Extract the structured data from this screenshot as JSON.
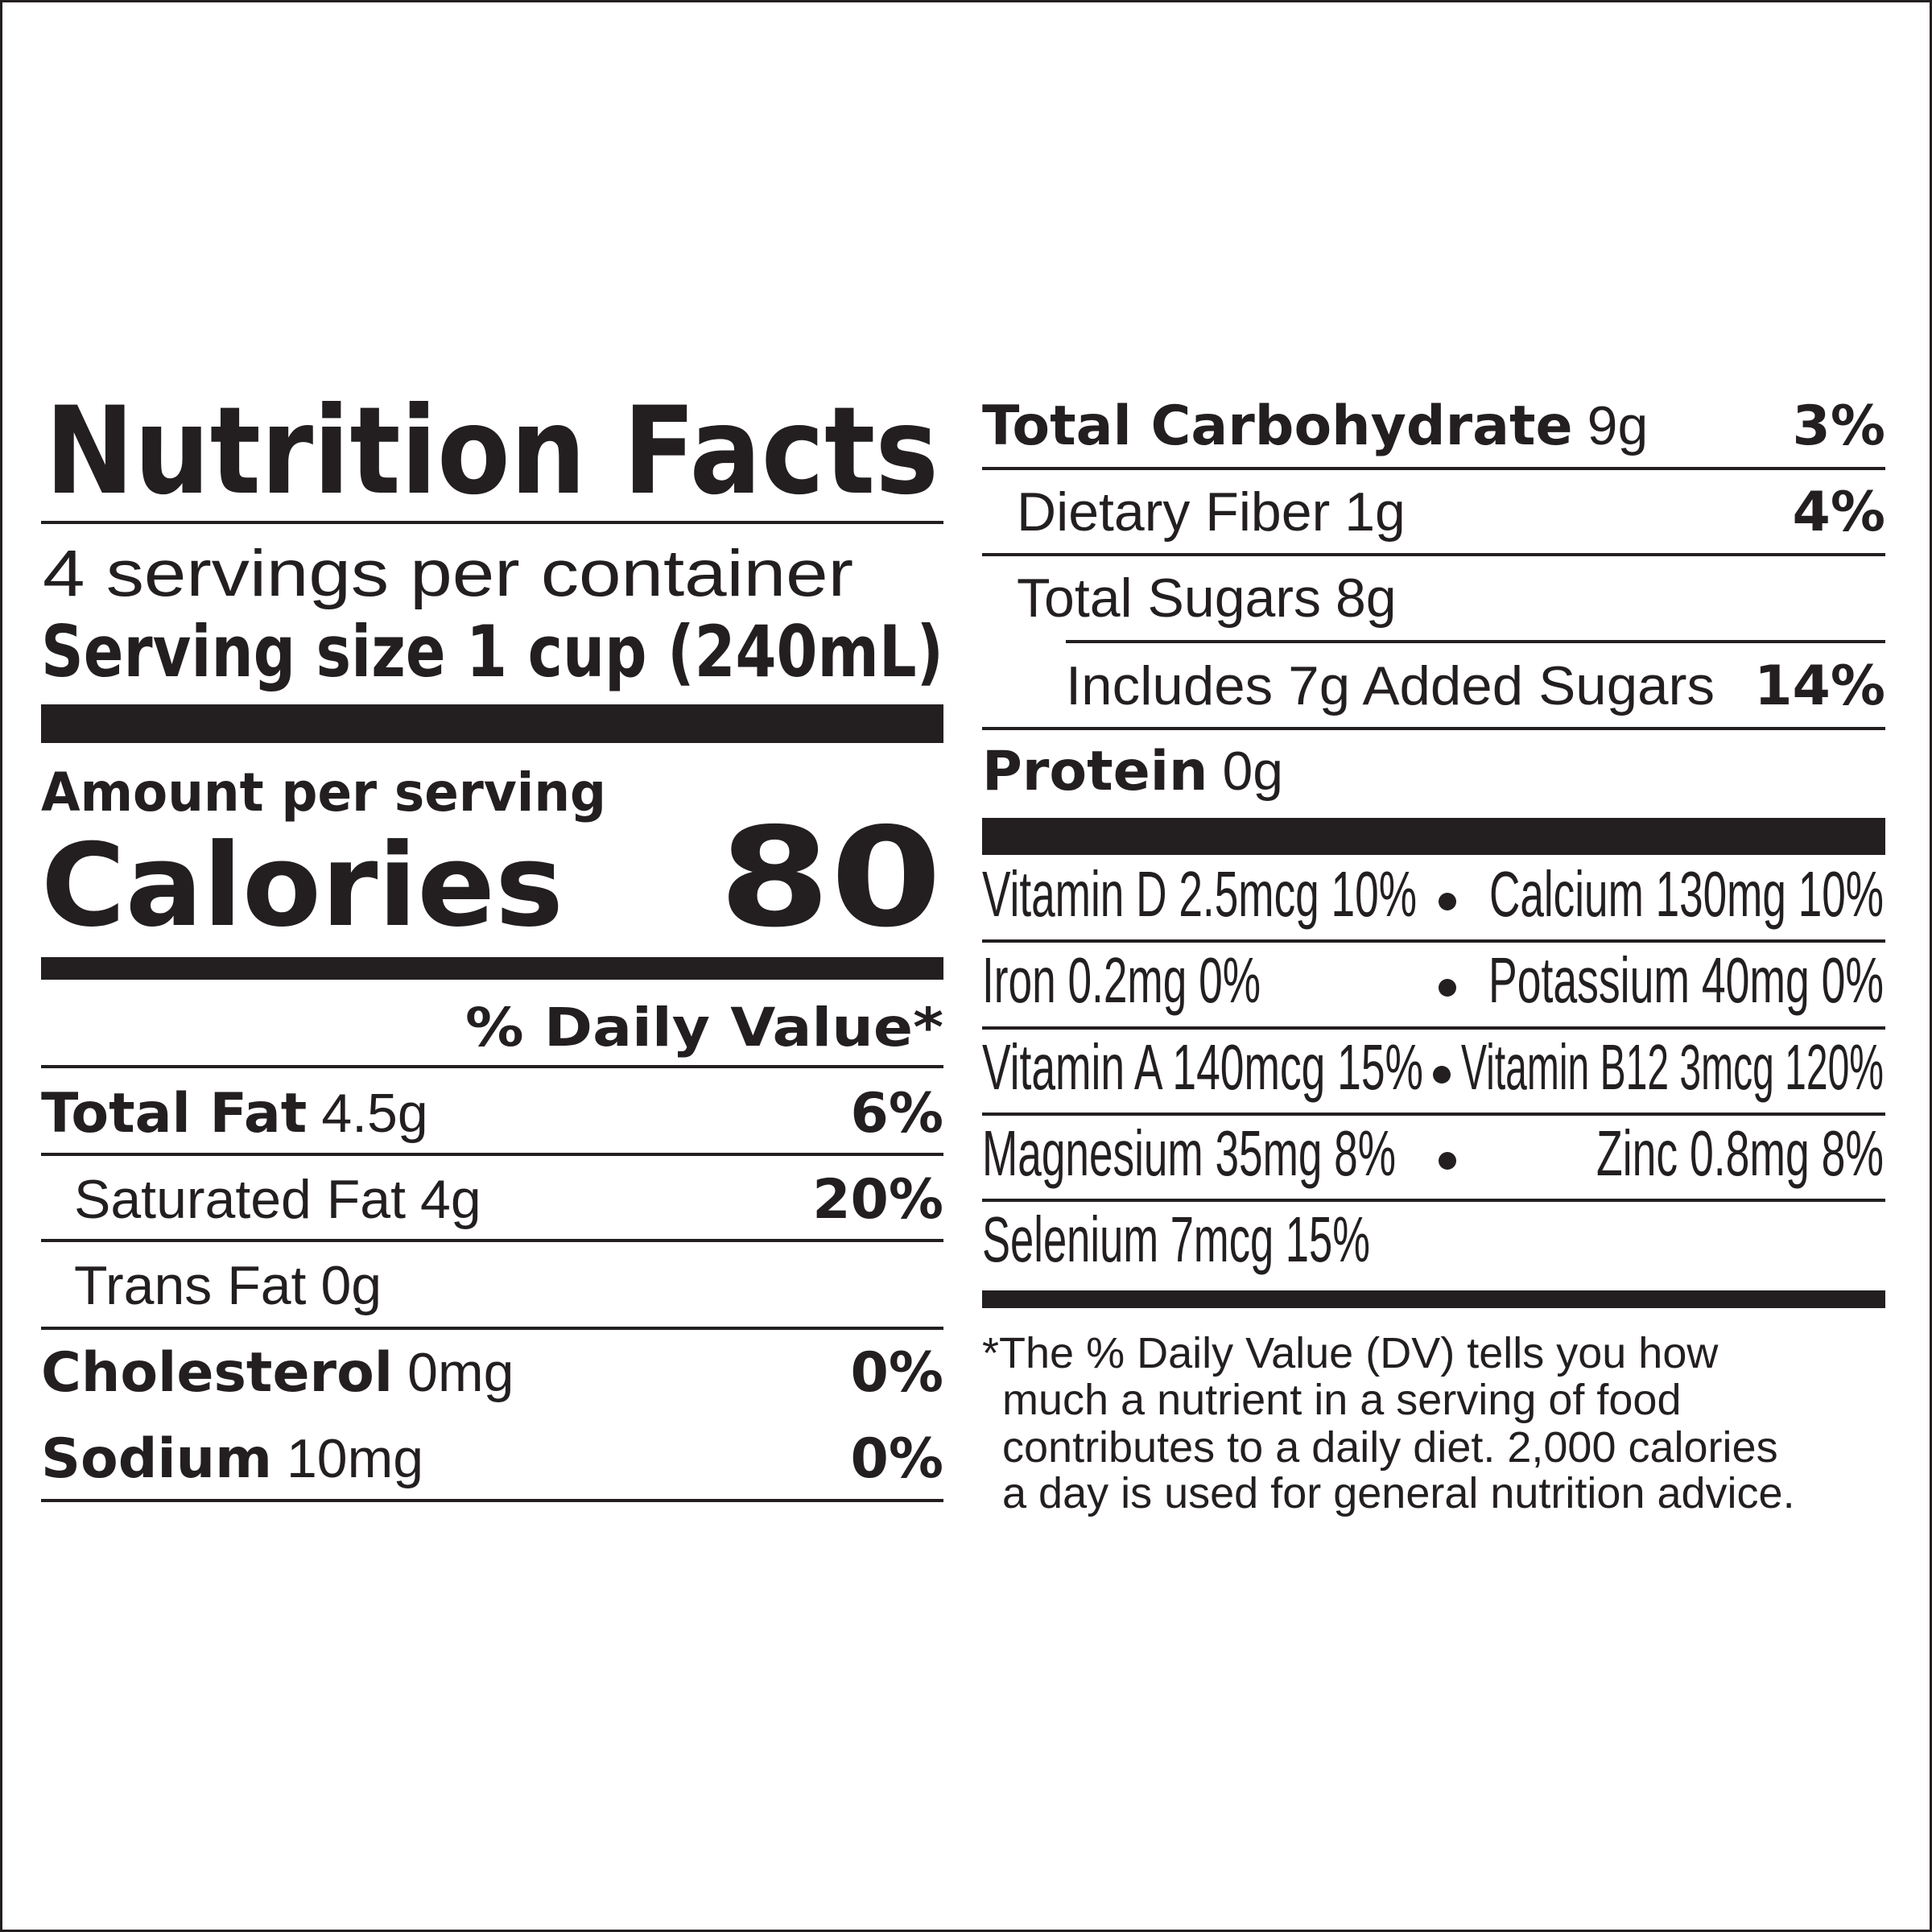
{
  "title": "Nutrition Facts",
  "servings": "4 servings per container",
  "serving_size": "Serving size 1 cup (240mL)",
  "amount_per_serving": "Amount per serving",
  "calories": {
    "label": "Calories",
    "value": "80"
  },
  "daily_value_header": "% Daily Value*",
  "nutrients": [
    {
      "name": "Total Fat",
      "amount": "4.5g",
      "dv": "6%",
      "sub": [
        {
          "name": "Saturated Fat",
          "amount": "4g",
          "dv": "20%"
        },
        {
          "name": "Trans Fat",
          "amount": "0g"
        }
      ]
    },
    {
      "name": "Cholesterol",
      "amount": "0mg",
      "dv": "0%"
    },
    {
      "name": "Sodium",
      "amount": "10mg",
      "dv": "0%"
    },
    {
      "name": "Total Carbohydrate",
      "amount": "9g",
      "dv": "3%",
      "sub": [
        {
          "name": "Dietary Fiber",
          "amount": "1g",
          "dv": "4%"
        },
        {
          "name": "Total Sugars",
          "amount": "8g",
          "sub": [
            {
              "text": "Includes 7g Added Sugars",
              "dv": "14%"
            }
          ]
        }
      ]
    },
    {
      "name": "Protein",
      "amount": "0g"
    }
  ],
  "micronutrients": [
    [
      "Vitamin D 2.5mcg 10%",
      "Calcium 130mg 10%"
    ],
    [
      "Iron 0.2mg 0%",
      "Potassium 40mg 0%"
    ],
    [
      "Vitamin A 140mcg 15%",
      "Vitamin B12 3mcg 120%"
    ],
    [
      "Magnesium 35mg 8%",
      "Zinc 0.8mg 8%"
    ],
    [
      "Selenium 7mcg 15%"
    ]
  ],
  "footnote": [
    "*The % Daily Value (DV) tells you how",
    "much a nutrient in a serving of food",
    "contributes to a daily diet. 2,000 calories",
    "a day is used for general nutrition advice."
  ]
}
